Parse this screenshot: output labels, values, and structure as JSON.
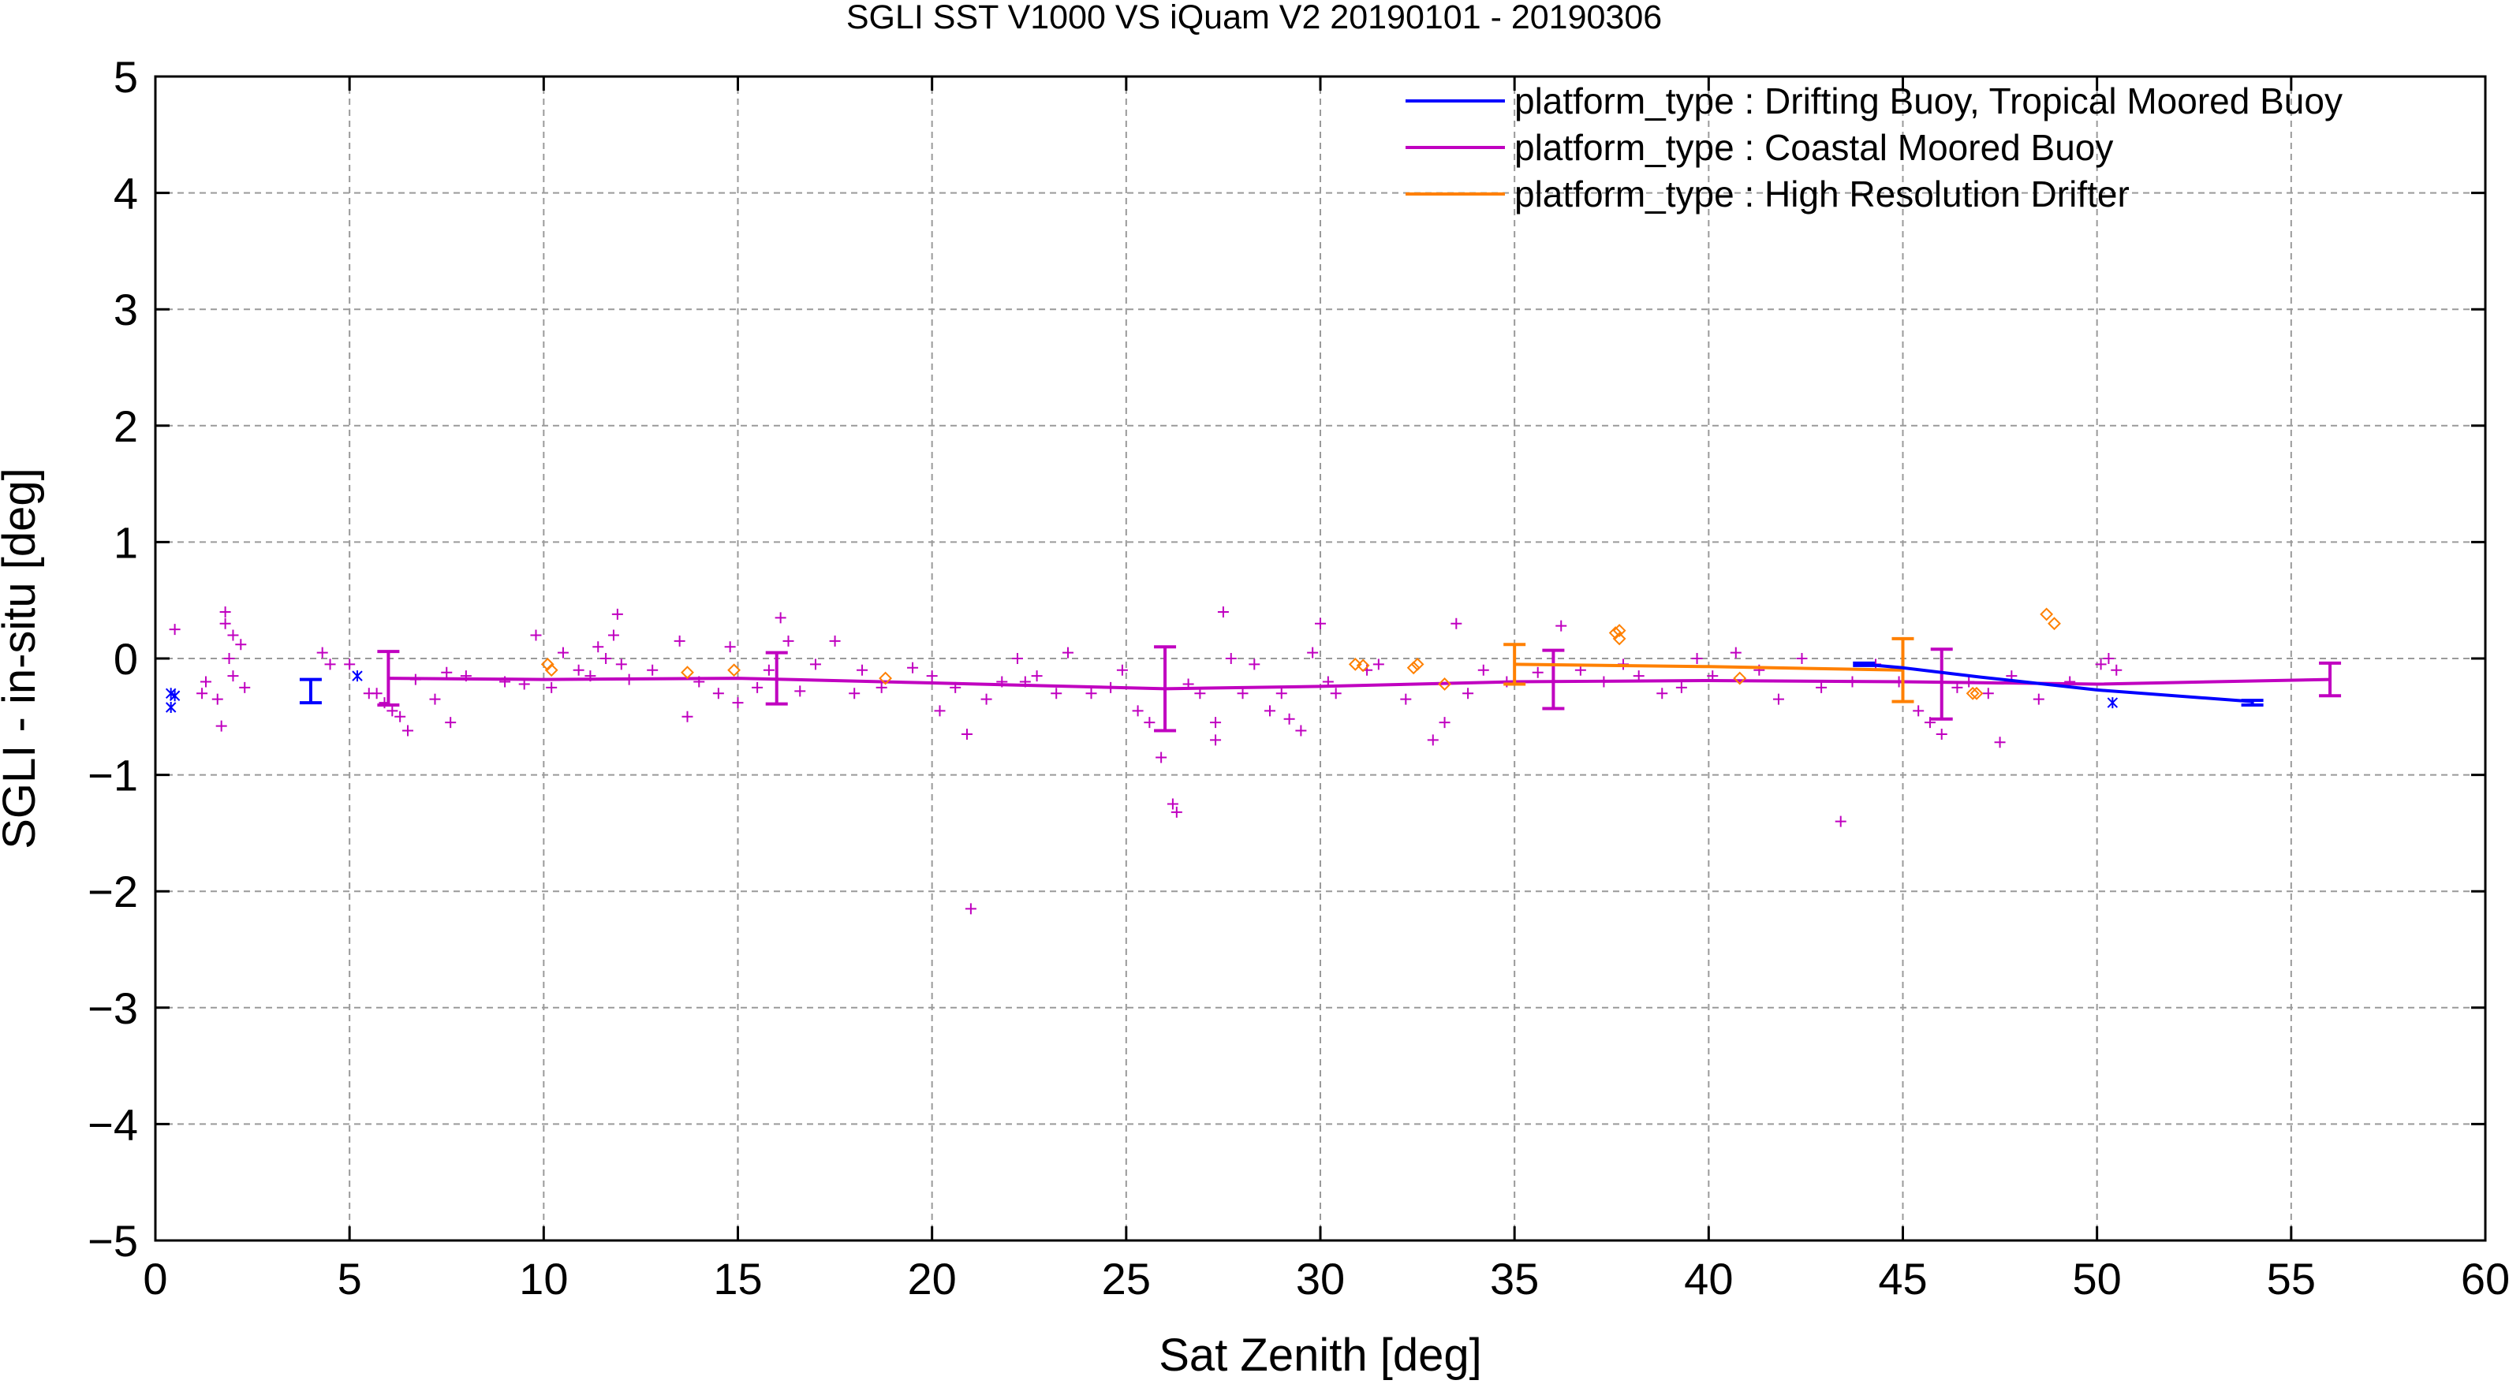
{
  "chart_data": {
    "type": "scatter",
    "title": "SGLI SST V1000 VS iQuam V2 20190101 - 20190306",
    "xlabel": "Sat Zenith [deg]",
    "ylabel": "SGLI - in-situ [deg]",
    "xlim": [
      0,
      60
    ],
    "ylim": [
      -5,
      5
    ],
    "xticks": [
      "0",
      "5",
      "10",
      "15",
      "20",
      "25",
      "30",
      "35",
      "40",
      "45",
      "50",
      "55",
      "60"
    ],
    "yticks": [
      "5",
      "4",
      "3",
      "2",
      "1",
      "0",
      "−1",
      "−2",
      "−3",
      "−4",
      "−5"
    ],
    "grid": true,
    "legend_position": "top-right",
    "series": [
      {
        "name": "platform_type : Drifting Buoy, Tropical Moored Buoy",
        "color": "#0000ff",
        "marker": "x-star",
        "points": [
          [
            0.4,
            -0.3
          ],
          [
            0.4,
            -0.42
          ],
          [
            0.5,
            -0.32
          ],
          [
            5.2,
            -0.15
          ],
          [
            50.4,
            -0.38
          ]
        ],
        "mean_line": [
          [
            44,
            -0.05
          ],
          [
            45,
            -0.08
          ],
          [
            47,
            -0.16
          ],
          [
            50,
            -0.27
          ],
          [
            54,
            -0.37
          ]
        ],
        "error_bars": [
          [
            4,
            -0.28,
            0.1
          ],
          [
            44,
            -0.05,
            0.01
          ],
          [
            54,
            -0.38,
            0.02
          ]
        ]
      },
      {
        "name": "platform_type : Coastal Moored Buoy",
        "color": "#c000c0",
        "marker": "plus",
        "points": [
          [
            0.5,
            0.25
          ],
          [
            1.2,
            -0.3
          ],
          [
            1.3,
            -0.2
          ],
          [
            1.6,
            -0.35
          ],
          [
            1.7,
            -0.58
          ],
          [
            1.8,
            0.4
          ],
          [
            1.8,
            0.3
          ],
          [
            1.9,
            0.0
          ],
          [
            2.0,
            -0.15
          ],
          [
            2.0,
            0.2
          ],
          [
            2.2,
            0.12
          ],
          [
            2.3,
            -0.25
          ],
          [
            4.3,
            0.05
          ],
          [
            4.5,
            -0.05
          ],
          [
            5.0,
            -0.05
          ],
          [
            5.5,
            -0.3
          ],
          [
            5.7,
            -0.3
          ],
          [
            5.9,
            -0.38
          ],
          [
            6.1,
            -0.45
          ],
          [
            6.3,
            -0.5
          ],
          [
            6.5,
            -0.62
          ],
          [
            6.7,
            -0.18
          ],
          [
            7.2,
            -0.35
          ],
          [
            7.5,
            -0.12
          ],
          [
            7.6,
            -0.55
          ],
          [
            8.0,
            -0.15
          ],
          [
            9.0,
            -0.2
          ],
          [
            9.5,
            -0.22
          ],
          [
            9.8,
            0.2
          ],
          [
            10.2,
            -0.25
          ],
          [
            10.5,
            0.05
          ],
          [
            10.9,
            -0.1
          ],
          [
            11.2,
            -0.15
          ],
          [
            11.4,
            0.1
          ],
          [
            11.6,
            0.0
          ],
          [
            11.8,
            0.2
          ],
          [
            11.9,
            0.38
          ],
          [
            12.0,
            -0.05
          ],
          [
            12.2,
            -0.18
          ],
          [
            12.8,
            -0.1
          ],
          [
            13.5,
            0.15
          ],
          [
            13.7,
            -0.5
          ],
          [
            14.0,
            -0.2
          ],
          [
            14.5,
            -0.3
          ],
          [
            14.8,
            0.1
          ],
          [
            15.0,
            -0.38
          ],
          [
            15.5,
            -0.25
          ],
          [
            15.8,
            -0.1
          ],
          [
            16.1,
            0.35
          ],
          [
            16.3,
            0.15
          ],
          [
            16.6,
            -0.28
          ],
          [
            17.0,
            -0.05
          ],
          [
            17.5,
            0.15
          ],
          [
            18.0,
            -0.3
          ],
          [
            18.2,
            -0.1
          ],
          [
            18.7,
            -0.25
          ],
          [
            19.5,
            -0.08
          ],
          [
            20.0,
            -0.15
          ],
          [
            20.2,
            -0.45
          ],
          [
            20.6,
            -0.25
          ],
          [
            20.9,
            -0.65
          ],
          [
            21.0,
            -2.15
          ],
          [
            21.4,
            -0.35
          ],
          [
            21.8,
            -0.2
          ],
          [
            22.2,
            0.0
          ],
          [
            22.4,
            -0.2
          ],
          [
            22.7,
            -0.15
          ],
          [
            23.2,
            -0.3
          ],
          [
            23.5,
            0.05
          ],
          [
            24.1,
            -0.3
          ],
          [
            24.6,
            -0.25
          ],
          [
            24.9,
            -0.1
          ],
          [
            25.3,
            -0.45
          ],
          [
            25.6,
            -0.55
          ],
          [
            25.9,
            -0.85
          ],
          [
            26.2,
            -1.25
          ],
          [
            26.3,
            -1.32
          ],
          [
            26.6,
            -0.22
          ],
          [
            26.9,
            -0.3
          ],
          [
            27.3,
            -0.55
          ],
          [
            27.3,
            -0.7
          ],
          [
            27.5,
            0.4
          ],
          [
            27.7,
            0.0
          ],
          [
            28.0,
            -0.3
          ],
          [
            28.3,
            -0.05
          ],
          [
            28.7,
            -0.45
          ],
          [
            29.0,
            -0.3
          ],
          [
            29.2,
            -0.52
          ],
          [
            29.5,
            -0.62
          ],
          [
            29.8,
            0.05
          ],
          [
            30.0,
            0.3
          ],
          [
            30.2,
            -0.2
          ],
          [
            30.4,
            -0.3
          ],
          [
            31.2,
            -0.1
          ],
          [
            31.5,
            -0.05
          ],
          [
            32.2,
            -0.35
          ],
          [
            32.9,
            -0.7
          ],
          [
            33.2,
            -0.55
          ],
          [
            33.5,
            0.3
          ],
          [
            33.8,
            -0.3
          ],
          [
            34.2,
            -0.1
          ],
          [
            34.8,
            -0.2
          ],
          [
            35.6,
            -0.12
          ],
          [
            36.2,
            0.28
          ],
          [
            36.7,
            -0.1
          ],
          [
            37.3,
            -0.2
          ],
          [
            37.8,
            -0.05
          ],
          [
            38.2,
            -0.15
          ],
          [
            38.8,
            -0.3
          ],
          [
            39.3,
            -0.25
          ],
          [
            39.7,
            0.0
          ],
          [
            40.1,
            -0.15
          ],
          [
            40.7,
            0.05
          ],
          [
            41.3,
            -0.1
          ],
          [
            41.8,
            -0.35
          ],
          [
            42.4,
            0.0
          ],
          [
            42.9,
            -0.25
          ],
          [
            43.4,
            -1.4
          ],
          [
            43.7,
            -0.2
          ],
          [
            44.3,
            -0.05
          ],
          [
            44.9,
            -0.2
          ],
          [
            45.4,
            -0.45
          ],
          [
            45.7,
            -0.55
          ],
          [
            46.0,
            -0.65
          ],
          [
            46.4,
            -0.25
          ],
          [
            46.7,
            -0.2
          ],
          [
            47.2,
            -0.3
          ],
          [
            47.5,
            -0.72
          ],
          [
            47.8,
            -0.15
          ],
          [
            48.5,
            -0.35
          ],
          [
            49.3,
            -0.2
          ],
          [
            50.1,
            -0.05
          ],
          [
            50.3,
            0.0
          ],
          [
            50.5,
            -0.1
          ]
        ],
        "mean_line": [
          [
            6,
            -0.17
          ],
          [
            10,
            -0.18
          ],
          [
            15,
            -0.17
          ],
          [
            20,
            -0.21
          ],
          [
            26,
            -0.26
          ],
          [
            30,
            -0.24
          ],
          [
            35,
            -0.2
          ],
          [
            40,
            -0.19
          ],
          [
            45,
            -0.2
          ],
          [
            50,
            -0.22
          ],
          [
            56,
            -0.18
          ]
        ],
        "error_bars": [
          [
            6,
            -0.17,
            0.23
          ],
          [
            16,
            -0.17,
            0.22
          ],
          [
            26,
            -0.26,
            0.36
          ],
          [
            36,
            -0.18,
            0.25
          ],
          [
            46,
            -0.22,
            0.3
          ],
          [
            56,
            -0.18,
            0.14
          ]
        ]
      },
      {
        "name": "platform_type : High Resolution Drifter",
        "color": "#ff8000",
        "marker": "diamond",
        "points": [
          [
            10.1,
            -0.05
          ],
          [
            10.2,
            -0.1
          ],
          [
            13.7,
            -0.12
          ],
          [
            14.9,
            -0.1
          ],
          [
            18.8,
            -0.17
          ],
          [
            30.9,
            -0.05
          ],
          [
            31.1,
            -0.06
          ],
          [
            32.4,
            -0.08
          ],
          [
            32.5,
            -0.05
          ],
          [
            33.2,
            -0.22
          ],
          [
            37.6,
            0.22
          ],
          [
            37.7,
            0.24
          ],
          [
            37.7,
            0.17
          ],
          [
            40.8,
            -0.17
          ],
          [
            46.8,
            -0.3
          ],
          [
            46.9,
            -0.3
          ],
          [
            48.7,
            0.38
          ],
          [
            48.9,
            0.3
          ]
        ],
        "mean_line": [
          [
            35,
            -0.05
          ],
          [
            40,
            -0.07
          ],
          [
            45,
            -0.1
          ]
        ],
        "error_bars": [
          [
            35,
            -0.05,
            0.17
          ],
          [
            45,
            -0.1,
            0.27
          ]
        ]
      }
    ]
  }
}
